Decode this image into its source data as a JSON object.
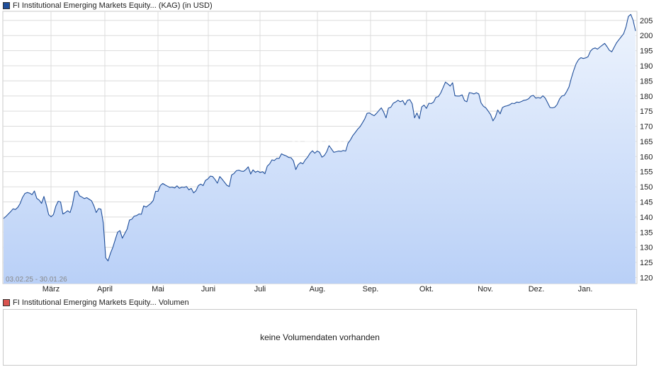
{
  "price_legend": {
    "label": "FI Institutional Emerging Markets Equity... (KAG)  (in USD)",
    "color": "#1f4e9a"
  },
  "volume_legend": {
    "label": "FI Institutional Emerging Markets Equity... Volumen",
    "color": "#d9534f"
  },
  "watermark": "ARIVA",
  "volume_panel": {
    "message": "keine Volumendaten vorhanden"
  },
  "chart_data": {
    "type": "area",
    "title": "FI Institutional Emerging Markets Equity... (KAG)  (in USD)",
    "date_range_label": "03.02.25 - 30.01.26",
    "x_tick_labels": [
      "März",
      "April",
      "Mai",
      "Juni",
      "Juli",
      "Aug.",
      "Sep.",
      "Okt.",
      "Nov.",
      "Dez.",
      "Jan."
    ],
    "y_ticks": [
      120,
      125,
      130,
      135,
      140,
      145,
      150,
      155,
      160,
      165,
      170,
      175,
      180,
      185,
      190,
      195,
      200,
      205
    ],
    "ylim": [
      118,
      208
    ],
    "y_axis_position": "right",
    "grid": true,
    "line_color": "#1f4e9a",
    "fill_color_top": "#eef4fd",
    "fill_color_bottom": "#b9d0f7",
    "series": [
      {
        "values": [
          139.5,
          140.2,
          141.0,
          141.8,
          142.7,
          142.5,
          143.2,
          144.5,
          146.5,
          147.8,
          148.1,
          147.9,
          147.4,
          148.6,
          146.2,
          145.6,
          144.5,
          146.8,
          144.0,
          140.8,
          140.1,
          140.8,
          143.6,
          145.2,
          145.0,
          141.0,
          141.5,
          142.1,
          141.5,
          144.0,
          148.3,
          148.6,
          147.0,
          146.6,
          146.1,
          146.4,
          145.9,
          145.4,
          143.8,
          141.5,
          142.8,
          142.6,
          138.0,
          126.5,
          125.5,
          128.0,
          130.0,
          132.5,
          135.0,
          135.5,
          133.0,
          134.5,
          136.0,
          139.0,
          139.3,
          140.3,
          140.5,
          141.0,
          140.9,
          143.7,
          143.3,
          143.9,
          144.5,
          145.5,
          148.5,
          148.5,
          150.4,
          151.1,
          150.6,
          150.2,
          149.8,
          149.9,
          149.6,
          150.3,
          149.5,
          149.9,
          149.8,
          150.1,
          149.0,
          149.5,
          148.0,
          148.7,
          150.4,
          150.9,
          150.4,
          152.1,
          152.6,
          153.5,
          153.4,
          152.4,
          151.2,
          153.4,
          152.5,
          151.5,
          150.5,
          150.1,
          153.9,
          154.4,
          155.3,
          155.5,
          155.2,
          155.1,
          155.7,
          156.6,
          154.2,
          155.6,
          154.8,
          155.2,
          154.7,
          155.0,
          154.3,
          156.8,
          157.6,
          158.9,
          158.7,
          159.4,
          159.4,
          160.9,
          160.5,
          160.2,
          159.7,
          159.6,
          158.6,
          155.7,
          157.3,
          158.0,
          157.6,
          158.9,
          159.8,
          161.1,
          161.9,
          161.1,
          161.8,
          161.4,
          159.8,
          160.3,
          161.6,
          163.6,
          162.5,
          161.4,
          161.6,
          161.8,
          161.7,
          162.0,
          161.8,
          164.4,
          165.5,
          166.9,
          167.9,
          169.0,
          169.8,
          171.1,
          172.4,
          174.3,
          174.4,
          173.9,
          173.5,
          174.3,
          175.2,
          176.1,
          174.7,
          172.8,
          176.0,
          176.3,
          177.6,
          178.0,
          178.6,
          178.1,
          178.5,
          177.1,
          178.6,
          178.8,
          177.4,
          172.8,
          174.4,
          172.5,
          176.4,
          177.0,
          175.9,
          177.6,
          177.5,
          178.0,
          179.6,
          179.8,
          181.0,
          182.8,
          184.6,
          184.0,
          183.3,
          184.4,
          180.1,
          180.0,
          180.0,
          180.4,
          178.5,
          178.1,
          181.1,
          181.0,
          180.7,
          181.1,
          180.7,
          177.7,
          176.6,
          176.1,
          175.0,
          173.9,
          171.8,
          173.1,
          175.4,
          174.1,
          176.2,
          176.6,
          176.8,
          177.1,
          177.6,
          177.5,
          178.0,
          177.9,
          178.2,
          178.6,
          178.7,
          179.1,
          180.0,
          180.2,
          179.3,
          179.5,
          179.3,
          180.1,
          179.3,
          177.8,
          176.2,
          176.1,
          176.3,
          177.2,
          179.0,
          180.0,
          180.2,
          181.5,
          183.0,
          186.0,
          188.5,
          190.7,
          192.0,
          192.7,
          192.4,
          192.6,
          193.0,
          194.8,
          195.6,
          195.9,
          195.5,
          196.2,
          196.8,
          197.4,
          196.3,
          195.1,
          194.6,
          196.1,
          197.6,
          198.6,
          199.6,
          200.6,
          202.9,
          206.3,
          207.0,
          205.0,
          201.5
        ]
      }
    ]
  }
}
